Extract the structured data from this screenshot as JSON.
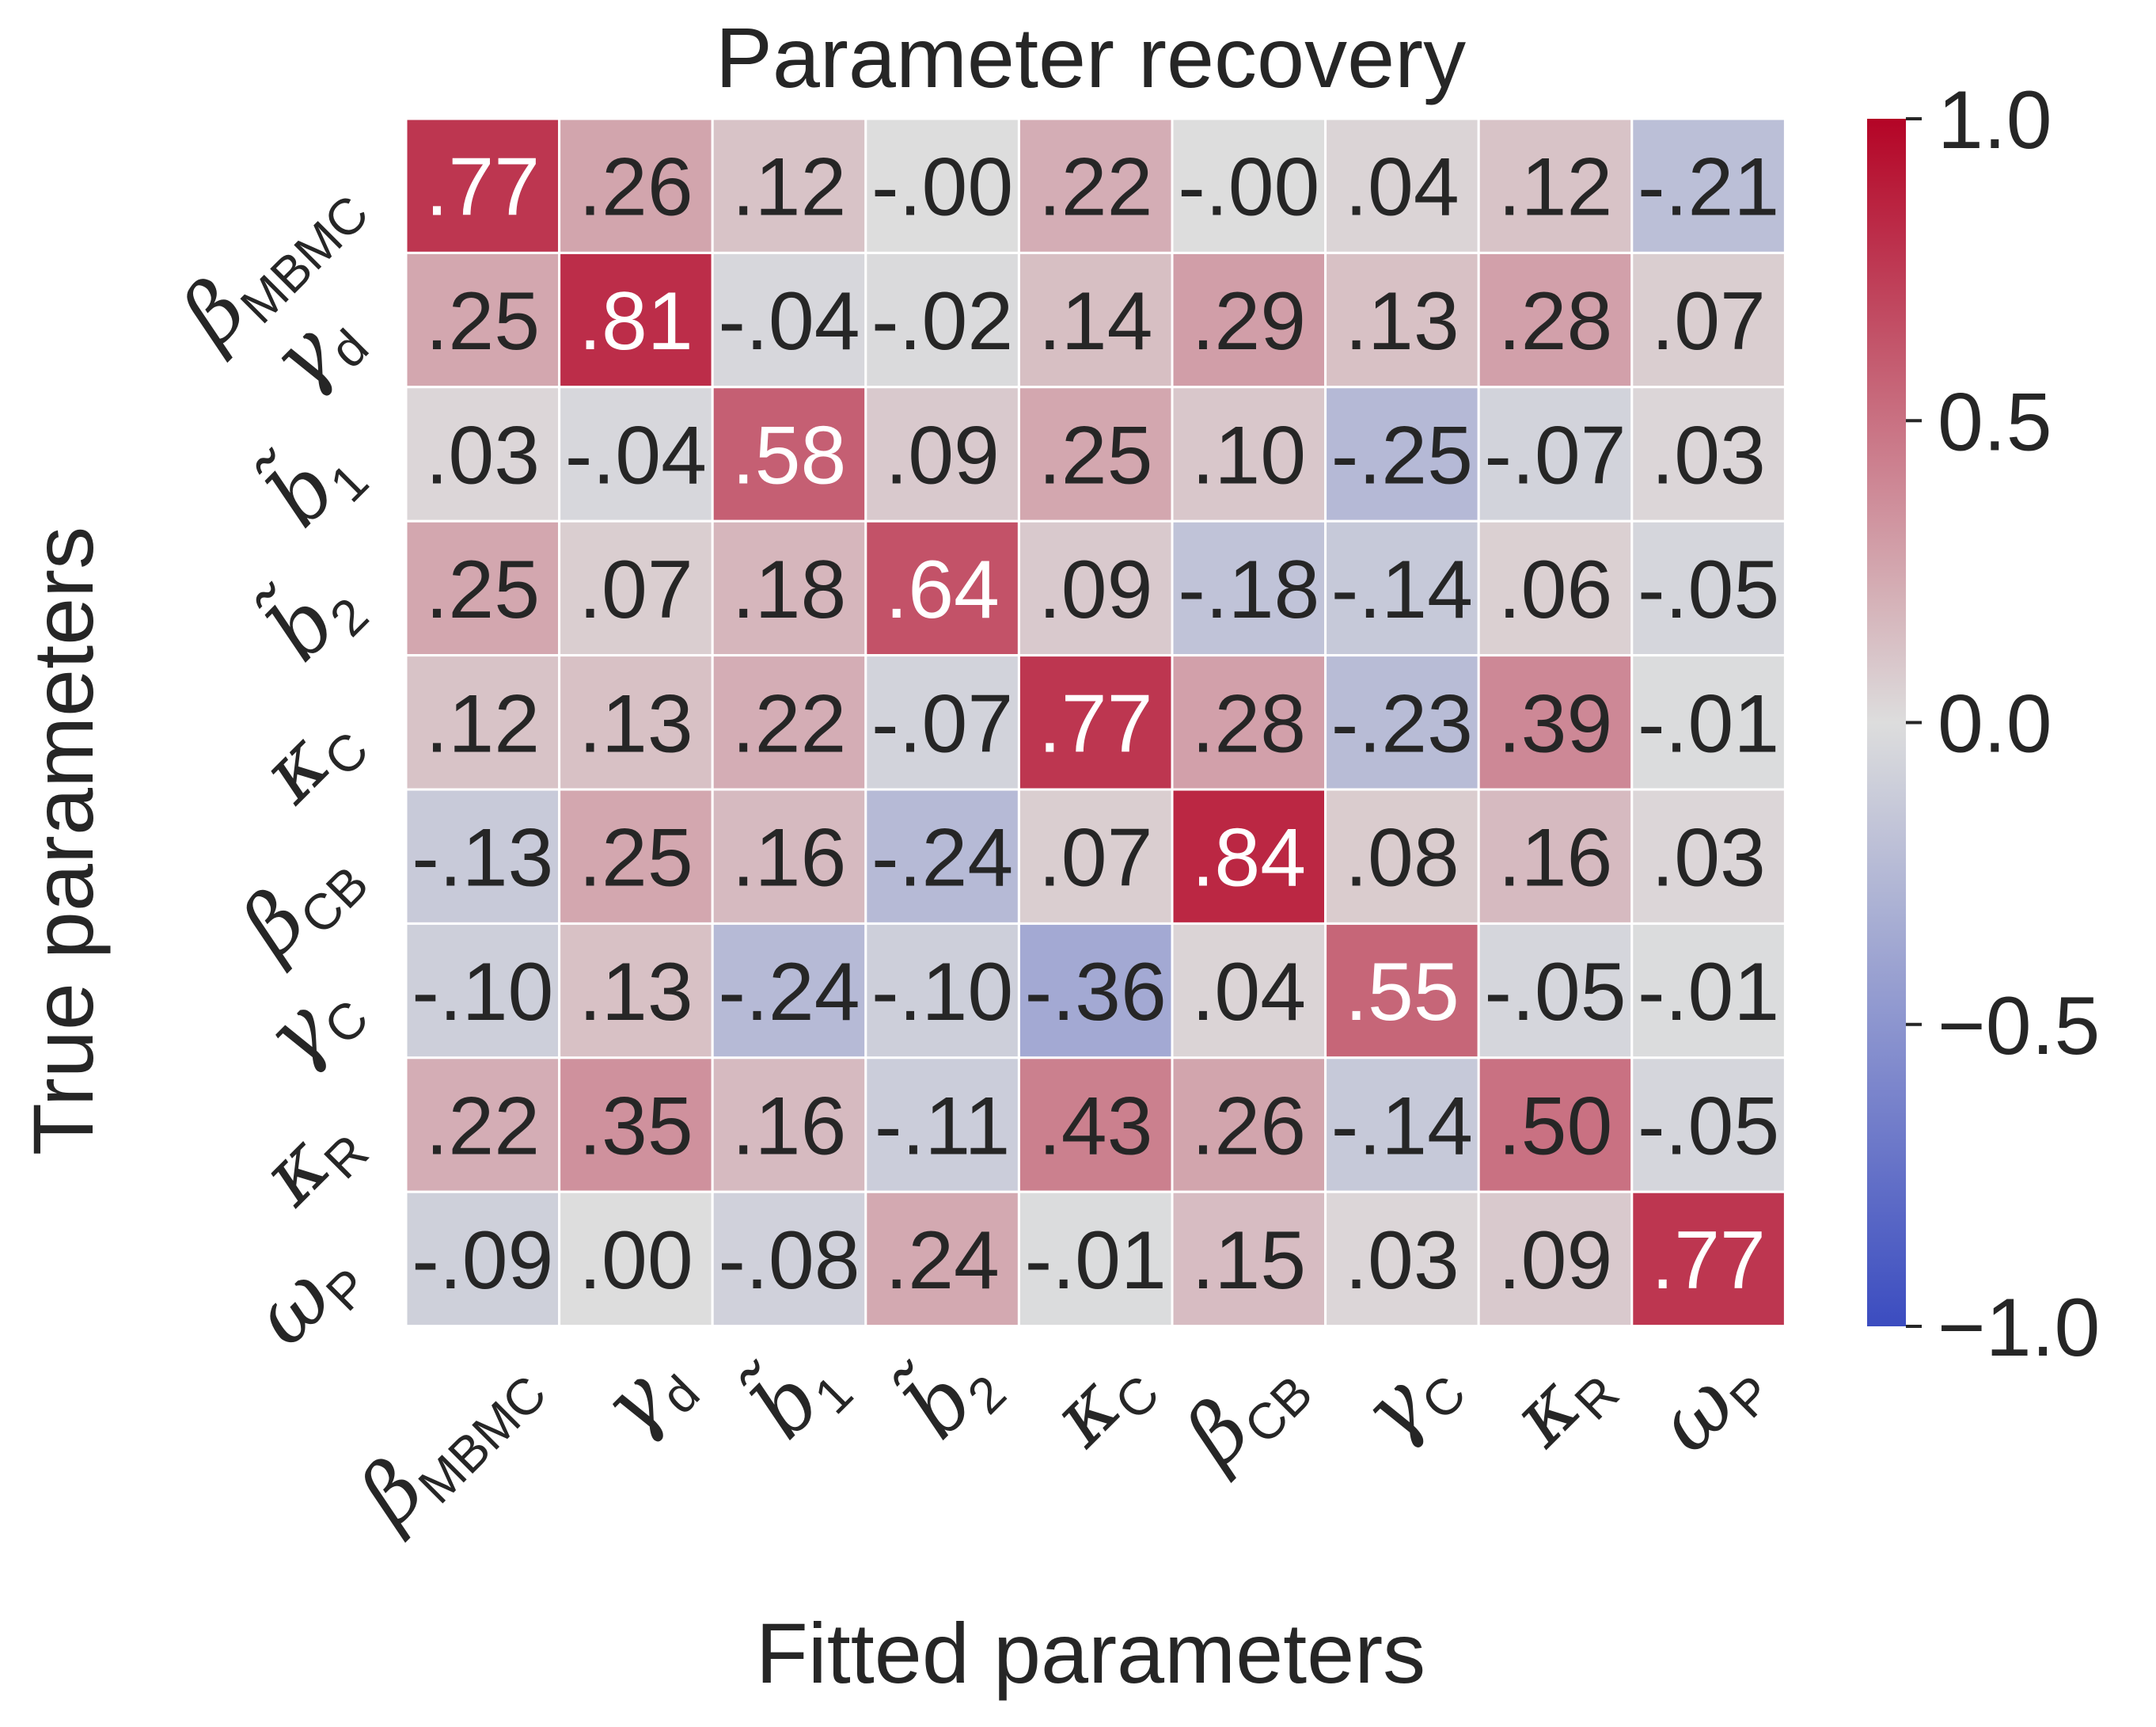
{
  "chart_data": {
    "type": "heatmap",
    "title": "Parameter recovery",
    "xlabel": "Fitted parameters",
    "ylabel": "True parameters",
    "x_labels": [
      {
        "sym": "β",
        "sub": "MBMC"
      },
      {
        "sym": "γ",
        "sub": "d"
      },
      {
        "sym": "b̃",
        "sub": "1"
      },
      {
        "sym": "b̃",
        "sub": "2"
      },
      {
        "sym": "κ",
        "sub": "C"
      },
      {
        "sym": "β",
        "sub": "CB"
      },
      {
        "sym": "γ",
        "sub": "C"
      },
      {
        "sym": "κ",
        "sub": "R"
      },
      {
        "sym": "ω",
        "sub": "P"
      }
    ],
    "y_labels": [
      {
        "sym": "β",
        "sub": "MBMC"
      },
      {
        "sym": "γ",
        "sub": "d"
      },
      {
        "sym": "b̃",
        "sub": "1"
      },
      {
        "sym": "b̃",
        "sub": "2"
      },
      {
        "sym": "κ",
        "sub": "C"
      },
      {
        "sym": "β",
        "sub": "CB"
      },
      {
        "sym": "γ",
        "sub": "C"
      },
      {
        "sym": "κ",
        "sub": "R"
      },
      {
        "sym": "ω",
        "sub": "P"
      }
    ],
    "values": [
      [
        0.77,
        0.26,
        0.12,
        -0.0,
        0.22,
        -0.0,
        0.04,
        0.12,
        -0.21
      ],
      [
        0.25,
        0.81,
        -0.04,
        -0.02,
        0.14,
        0.29,
        0.13,
        0.28,
        0.07
      ],
      [
        0.03,
        -0.04,
        0.58,
        0.09,
        0.25,
        0.1,
        -0.25,
        -0.07,
        0.03
      ],
      [
        0.25,
        0.07,
        0.18,
        0.64,
        0.09,
        -0.18,
        -0.14,
        0.06,
        -0.05
      ],
      [
        0.12,
        0.13,
        0.22,
        -0.07,
        0.77,
        0.28,
        -0.23,
        0.39,
        -0.01
      ],
      [
        -0.13,
        0.25,
        0.16,
        -0.24,
        0.07,
        0.84,
        0.08,
        0.16,
        0.03
      ],
      [
        -0.1,
        0.13,
        -0.24,
        -0.1,
        -0.36,
        0.04,
        0.55,
        -0.05,
        -0.01
      ],
      [
        0.22,
        0.35,
        0.16,
        -0.11,
        0.43,
        0.26,
        -0.14,
        0.5,
        -0.05
      ],
      [
        -0.09,
        0.0,
        -0.08,
        0.24,
        -0.01,
        0.15,
        0.03,
        0.09,
        0.77
      ]
    ],
    "cell_labels": [
      [
        ".77",
        ".26",
        ".12",
        "-.00",
        ".22",
        "-.00",
        ".04",
        ".12",
        "-.21"
      ],
      [
        ".25",
        ".81",
        "-.04",
        "-.02",
        ".14",
        ".29",
        ".13",
        ".28",
        ".07"
      ],
      [
        ".03",
        "-.04",
        ".58",
        ".09",
        ".25",
        ".10",
        "-.25",
        "-.07",
        ".03"
      ],
      [
        ".25",
        ".07",
        ".18",
        ".64",
        ".09",
        "-.18",
        "-.14",
        ".06",
        "-.05"
      ],
      [
        ".12",
        ".13",
        ".22",
        "-.07",
        ".77",
        ".28",
        "-.23",
        ".39",
        "-.01"
      ],
      [
        "-.13",
        ".25",
        ".16",
        "-.24",
        ".07",
        ".84",
        ".08",
        ".16",
        ".03"
      ],
      [
        "-.10",
        ".13",
        "-.24",
        "-.10",
        "-.36",
        ".04",
        ".55",
        "-.05",
        "-.01"
      ],
      [
        ".22",
        ".35",
        ".16",
        "-.11",
        ".43",
        ".26",
        "-.14",
        ".50",
        "-.05"
      ],
      [
        "-.09",
        ".00",
        "-.08",
        ".24",
        "-.01",
        ".15",
        ".03",
        ".09",
        ".77"
      ]
    ],
    "vmin": -1.0,
    "vmax": 1.0,
    "colormap": "coolwarm",
    "colorbar_ticks": [
      1.0,
      0.5,
      0.0,
      -0.5,
      -1.0
    ],
    "colorbar_tick_labels": [
      "1.0",
      "0.5",
      "0.0",
      "−0.5",
      "−1.0"
    ],
    "grid": true,
    "colors": {
      "cmap_low": "#3b4cc0",
      "cmap_mid": "#dddddd",
      "cmap_high": "#b40426",
      "text_dark": "#262626",
      "text_light": "#ffffff",
      "cell_border": "#ffffff"
    }
  }
}
